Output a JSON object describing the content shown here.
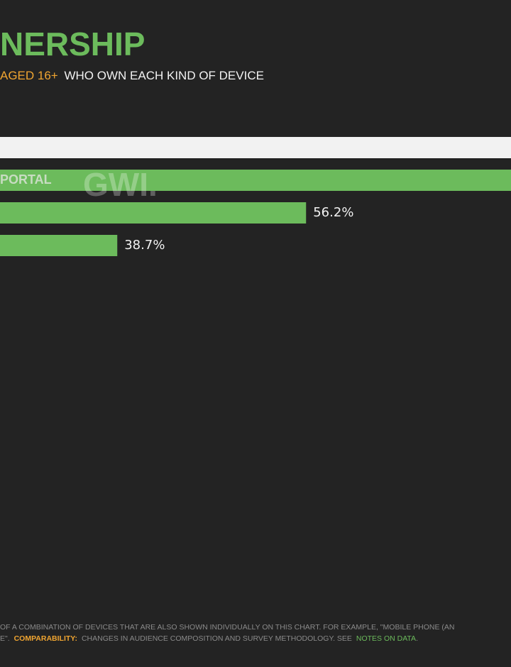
{
  "header": {
    "title": "NERSHIP",
    "subtitle_highlight": "AGED 16+",
    "subtitle": "WHO OWN EACH KIND OF DEVICE"
  },
  "chart_data": {
    "type": "bar",
    "orientation": "horizontal",
    "color": "#6cbb5c",
    "categories": [
      "PORTAL",
      null,
      null
    ],
    "values": [
      null,
      56.2,
      38.7
    ],
    "value_labels": [
      null,
      "56.2%",
      "38.7%"
    ]
  },
  "watermark": "GWI.",
  "footer": {
    "line1": "OF A COMBINATION OF DEVICES THAT ARE ALSO SHOWN INDIVIDUALLY ON THIS CHART. FOR EXAMPLE, \"MOBILE PHONE (AN",
    "line2_start": "E\".",
    "line2_highlight": "COMPARABILITY:",
    "line2_text": "CHANGES IN AUDIENCE COMPOSITION AND SURVEY METHODOLOGY. SEE",
    "line2_link": "NOTES ON DATA",
    "line2_end": "."
  }
}
